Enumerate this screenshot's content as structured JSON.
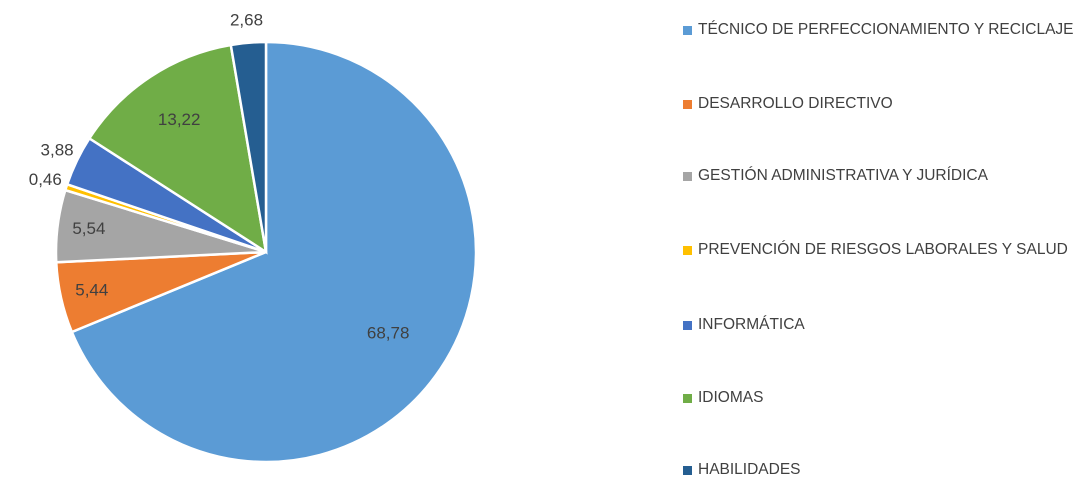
{
  "chart_data": {
    "type": "pie",
    "categories": [
      "TÉCNICO DE PERFECCIONAMIENTO Y RECICLAJE",
      "DESARROLLO DIRECTIVO",
      "GESTIÓN ADMINISTRATIVA Y JURÍDICA",
      "PREVENCIÓN DE RIESGOS LABORALES Y SALUD",
      "INFORMÁTICA",
      "IDIOMAS",
      "HABILIDADES"
    ],
    "values": [
      68.78,
      5.44,
      5.54,
      0.46,
      3.88,
      13.22,
      2.68
    ],
    "value_labels": [
      "68,78",
      "5,44",
      "5,54",
      "0,46",
      "3,88",
      "13,22",
      "2,68"
    ],
    "colors": [
      "#5b9bd5",
      "#ed7d31",
      "#a5a5a5",
      "#ffc000",
      "#4472c4",
      "#70ad47",
      "#255e91"
    ],
    "legend": "right"
  }
}
